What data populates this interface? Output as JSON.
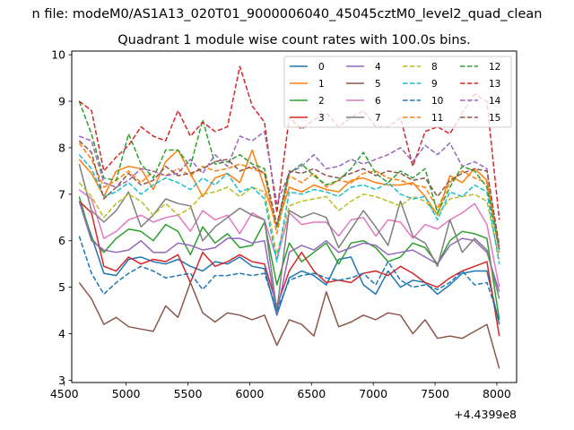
{
  "suptitle": "n file: modeM0/AS1A13_020T01_9000006040_45045cztM0_level2_quad_clean",
  "chart_data": {
    "type": "line",
    "title": "Quadrant 1 module wise count rates with 100.0s bins.",
    "xlabel": "",
    "ylabel": "",
    "x_offset_label": "+4.4399e8",
    "xlim": [
      4560,
      8160
    ],
    "ylim": [
      2.95,
      10.08
    ],
    "x_ticks": [
      4500,
      5000,
      5500,
      6000,
      6500,
      7000,
      7500,
      8000
    ],
    "x_tick_labels": [
      "4500",
      "5000",
      "5500",
      "6000",
      "6500",
      "7000",
      "7500",
      "8000"
    ],
    "y_ticks": [
      3,
      4,
      5,
      6,
      7,
      8,
      9,
      10
    ],
    "y_tick_labels": [
      "3",
      "4",
      "5",
      "6",
      "7",
      "8",
      "9",
      "10"
    ],
    "grid": false,
    "legend_position": "upper-right",
    "legend_columns": 4,
    "x": [
      4620,
      4720,
      4820,
      4920,
      5020,
      5120,
      5220,
      5320,
      5420,
      5520,
      5620,
      5720,
      5820,
      5920,
      6020,
      6120,
      6220,
      6320,
      6420,
      6520,
      6620,
      6720,
      6820,
      6920,
      7020,
      7120,
      7220,
      7320,
      7420,
      7520,
      7620,
      7720,
      7820,
      7920,
      8020
    ],
    "series": [
      {
        "name": "0",
        "color": "#1f77b4",
        "style": "solid",
        "values": [
          6.85,
          6.1,
          5.3,
          5.25,
          5.6,
          5.65,
          5.55,
          5.5,
          5.6,
          5.45,
          5.35,
          5.55,
          5.5,
          5.65,
          5.45,
          5.4,
          4.4,
          5.2,
          5.35,
          5.25,
          5.05,
          5.6,
          5.65,
          5.05,
          4.85,
          5.35,
          5.0,
          5.15,
          5.1,
          4.85,
          5.05,
          5.3,
          5.35,
          5.35,
          4.2
        ]
      },
      {
        "name": "1",
        "color": "#ff7f0e",
        "style": "solid",
        "values": [
          7.75,
          7.45,
          6.95,
          7.5,
          7.6,
          7.55,
          7.1,
          7.7,
          7.95,
          7.45,
          6.95,
          7.35,
          7.45,
          7.25,
          7.95,
          7.15,
          6.3,
          7.15,
          7.05,
          7.2,
          7.1,
          7.05,
          7.3,
          7.35,
          7.25,
          7.2,
          7.2,
          7.25,
          6.95,
          6.55,
          7.4,
          7.25,
          7.55,
          7.3,
          5.8
        ]
      },
      {
        "name": "2",
        "color": "#2ca02c",
        "style": "solid",
        "values": [
          6.95,
          6.05,
          5.75,
          6.05,
          6.25,
          6.2,
          6.0,
          6.35,
          6.2,
          5.7,
          6.3,
          5.95,
          6.15,
          5.85,
          5.9,
          6.4,
          5.05,
          5.95,
          5.55,
          5.75,
          5.95,
          5.5,
          5.95,
          6.0,
          5.85,
          5.55,
          5.65,
          5.95,
          5.85,
          5.5,
          6.0,
          6.2,
          6.15,
          6.05,
          4.3
        ]
      },
      {
        "name": "3",
        "color": "#d62728",
        "style": "solid",
        "values": [
          6.85,
          6.6,
          5.45,
          5.35,
          5.65,
          5.5,
          5.6,
          5.55,
          5.7,
          5.1,
          5.75,
          5.45,
          5.55,
          5.7,
          5.55,
          5.5,
          4.6,
          5.35,
          5.75,
          5.35,
          5.1,
          5.15,
          5.1,
          5.3,
          5.35,
          5.25,
          5.45,
          5.3,
          5.1,
          5.0,
          5.2,
          5.35,
          5.45,
          5.55,
          3.95
        ]
      },
      {
        "name": "4",
        "color": "#9467bd",
        "style": "solid",
        "values": [
          6.85,
          6.0,
          5.8,
          5.75,
          5.8,
          6.0,
          5.75,
          5.75,
          5.95,
          5.9,
          5.8,
          5.85,
          6.05,
          6.05,
          5.95,
          6.0,
          4.45,
          5.75,
          5.9,
          5.8,
          6.0,
          5.75,
          5.85,
          5.95,
          5.9,
          5.7,
          5.75,
          5.8,
          5.65,
          5.5,
          5.9,
          6.05,
          6.0,
          5.75,
          4.9
        ]
      },
      {
        "name": "5",
        "color": "#8c564b",
        "style": "solid",
        "values": [
          5.1,
          4.75,
          4.2,
          4.35,
          4.15,
          4.1,
          4.05,
          4.6,
          4.35,
          5.1,
          4.45,
          4.25,
          4.45,
          4.4,
          4.3,
          4.4,
          3.75,
          4.3,
          4.2,
          3.95,
          4.9,
          4.15,
          4.25,
          4.4,
          4.3,
          4.45,
          4.4,
          4.0,
          4.3,
          3.9,
          3.95,
          3.9,
          4.05,
          4.2,
          3.25
        ]
      },
      {
        "name": "6",
        "color": "#e377c2",
        "style": "solid",
        "values": [
          7.1,
          6.9,
          6.05,
          6.2,
          6.45,
          6.55,
          6.4,
          6.5,
          6.55,
          6.2,
          6.65,
          6.45,
          6.55,
          6.15,
          6.6,
          6.45,
          5.6,
          6.6,
          6.35,
          6.4,
          6.4,
          6.1,
          6.45,
          6.5,
          6.1,
          6.45,
          6.4,
          6.05,
          6.35,
          6.25,
          6.45,
          6.6,
          6.8,
          6.35,
          5.0
        ]
      },
      {
        "name": "7",
        "color": "#7f7f7f",
        "style": "solid",
        "values": [
          7.65,
          6.65,
          6.4,
          6.65,
          7.05,
          6.3,
          6.55,
          6.9,
          6.8,
          6.75,
          6.0,
          6.3,
          6.5,
          6.7,
          6.55,
          6.45,
          4.5,
          6.65,
          6.5,
          6.6,
          6.5,
          5.85,
          6.25,
          6.65,
          6.3,
          5.9,
          6.85,
          6.1,
          5.95,
          5.45,
          6.45,
          5.75,
          6.05,
          5.8,
          4.75
        ]
      },
      {
        "name": "8",
        "color": "#bcbd22",
        "style": "dashed",
        "values": [
          7.25,
          6.95,
          6.5,
          6.8,
          7.0,
          6.85,
          6.55,
          6.8,
          6.55,
          6.7,
          7.0,
          7.05,
          7.15,
          6.95,
          7.15,
          7.05,
          5.7,
          6.75,
          6.85,
          6.9,
          6.95,
          6.65,
          6.85,
          7.0,
          6.95,
          6.85,
          6.75,
          6.95,
          6.85,
          6.55,
          6.9,
          6.95,
          7.0,
          6.85,
          5.6
        ]
      },
      {
        "name": "9",
        "color": "#17becf",
        "style": "dashed",
        "values": [
          7.85,
          7.55,
          6.95,
          7.05,
          7.25,
          7.0,
          7.2,
          7.35,
          7.25,
          7.1,
          7.35,
          7.2,
          7.45,
          7.05,
          7.15,
          6.9,
          5.55,
          7.05,
          7.0,
          7.1,
          7.05,
          6.95,
          7.15,
          7.2,
          7.1,
          7.25,
          7.0,
          6.9,
          6.95,
          6.45,
          7.05,
          6.95,
          7.2,
          7.05,
          5.5
        ]
      },
      {
        "name": "10",
        "color": "#1f77b4",
        "style": "dashed",
        "values": [
          6.1,
          5.3,
          4.85,
          5.1,
          5.3,
          5.45,
          5.35,
          5.2,
          5.25,
          5.3,
          4.95,
          5.25,
          5.25,
          5.3,
          5.25,
          5.3,
          4.5,
          5.15,
          5.25,
          5.3,
          5.2,
          5.15,
          5.2,
          5.3,
          5.05,
          5.55,
          5.15,
          5.0,
          5.05,
          4.95,
          5.1,
          5.35,
          5.05,
          5.1,
          4.3
        ]
      },
      {
        "name": "11",
        "color": "#ff7f0e",
        "style": "dashed",
        "values": [
          8.1,
          7.75,
          7.15,
          7.3,
          7.5,
          7.25,
          7.5,
          7.4,
          7.55,
          7.4,
          7.6,
          7.5,
          7.55,
          7.65,
          7.55,
          7.45,
          6.15,
          7.4,
          7.25,
          7.45,
          7.15,
          7.3,
          7.25,
          7.45,
          7.5,
          7.35,
          7.3,
          7.2,
          7.15,
          6.7,
          7.25,
          7.5,
          7.35,
          7.25,
          5.75
        ]
      },
      {
        "name": "12",
        "color": "#2ca02c",
        "style": "dashed",
        "values": [
          9.0,
          8.3,
          7.35,
          7.3,
          8.3,
          7.65,
          7.35,
          7.95,
          7.95,
          7.6,
          8.6,
          7.65,
          7.7,
          7.85,
          7.65,
          7.55,
          6.3,
          7.45,
          7.65,
          7.4,
          7.2,
          7.3,
          7.55,
          7.9,
          7.45,
          7.25,
          7.5,
          7.35,
          7.55,
          6.6,
          7.15,
          7.6,
          7.5,
          7.15,
          5.8
        ]
      },
      {
        "name": "13",
        "color": "#d62728",
        "style": "dashed",
        "values": [
          9.0,
          8.8,
          7.5,
          7.8,
          8.05,
          8.45,
          8.25,
          8.15,
          8.8,
          8.25,
          8.55,
          8.35,
          8.45,
          9.75,
          8.9,
          8.55,
          6.6,
          8.65,
          8.4,
          8.6,
          8.75,
          8.45,
          8.65,
          8.8,
          8.45,
          8.45,
          8.65,
          7.6,
          8.35,
          8.45,
          8.3,
          8.75,
          9.15,
          9.0,
          6.45
        ]
      },
      {
        "name": "14",
        "color": "#9467bd",
        "style": "dashed",
        "values": [
          8.25,
          8.15,
          7.25,
          7.15,
          7.3,
          7.55,
          7.5,
          7.4,
          7.45,
          7.75,
          7.45,
          7.85,
          7.6,
          8.25,
          8.15,
          8.35,
          6.8,
          7.45,
          7.6,
          7.85,
          7.55,
          7.6,
          7.75,
          7.65,
          7.75,
          7.85,
          8.0,
          7.7,
          8.05,
          7.85,
          8.1,
          7.6,
          7.7,
          7.55,
          5.85
        ]
      },
      {
        "name": "15",
        "color": "#8c564b",
        "style": "dashed",
        "values": [
          8.15,
          7.9,
          6.9,
          7.15,
          7.45,
          7.2,
          7.3,
          7.6,
          7.4,
          7.45,
          7.55,
          7.7,
          7.75,
          7.5,
          7.6,
          7.45,
          6.35,
          7.5,
          7.45,
          7.55,
          7.4,
          7.35,
          7.45,
          7.55,
          7.4,
          7.5,
          7.45,
          7.3,
          7.35,
          6.95,
          7.3,
          7.45,
          7.55,
          7.5,
          5.9
        ]
      }
    ]
  }
}
